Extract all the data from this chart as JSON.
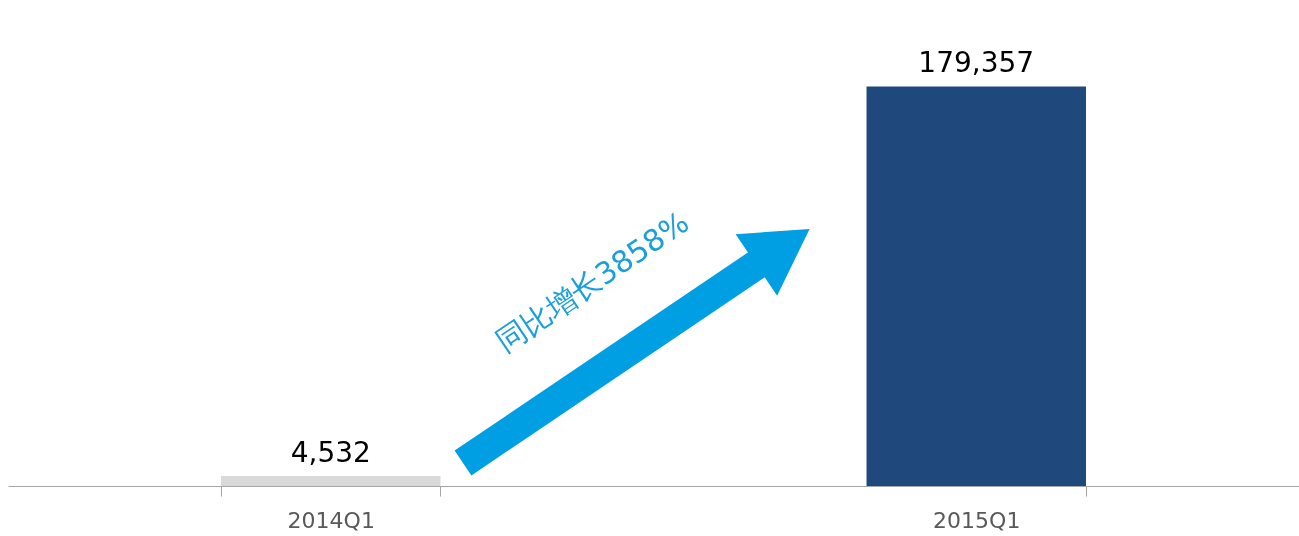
{
  "chart_data": {
    "type": "bar",
    "categories": [
      "2014Q1",
      "2015Q1"
    ],
    "values": [
      4532,
      179357
    ],
    "colors": [
      "#d9d9d9",
      "#1f497d"
    ],
    "value_labels": [
      "4,532",
      "179,357"
    ],
    "grid": false,
    "annotations": [
      "同比增长3858%"
    ]
  }
}
